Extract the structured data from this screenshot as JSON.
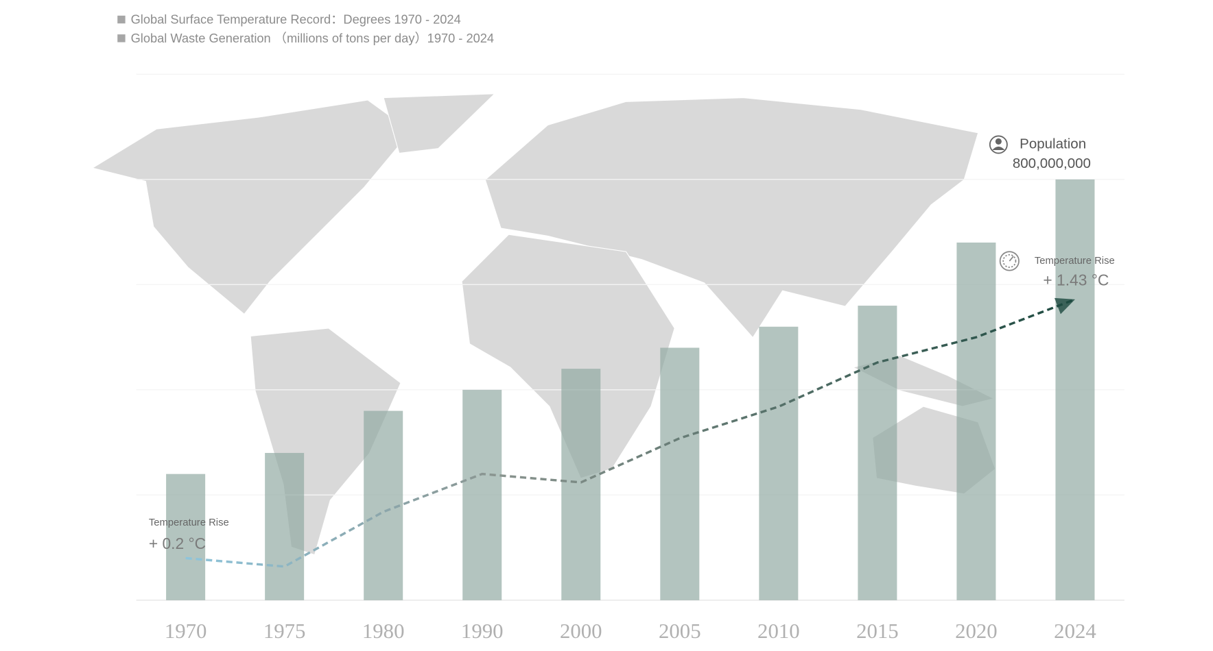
{
  "chart_data": {
    "type": "bar",
    "categories": [
      "1970",
      "1975",
      "1980",
      "1990",
      "2000",
      "2005",
      "2010",
      "2015",
      "2020",
      "2024"
    ],
    "ylim": [
      0,
      1000000000
    ],
    "yticks": [
      0,
      200000000,
      400000000,
      600000000,
      800000000,
      1000000000
    ],
    "y2lim": [
      0,
      2.5
    ],
    "grid": true,
    "series": [
      {
        "name": "Global Surface Temperature Record：Degrees  1970 - 2024",
        "type": "line",
        "axis": "y2",
        "color": "#1d4a40",
        "gradient": [
          "#8ec5dc",
          "#8a948f",
          "#1d4a40"
        ],
        "values": [
          0.2,
          0.16,
          0.42,
          0.6,
          0.56,
          0.77,
          0.92,
          1.13,
          1.25,
          1.43
        ],
        "value_labels": [
          "+ 0.2 °C",
          null,
          null,
          null,
          null,
          null,
          null,
          null,
          null,
          "+ 1.43 °C"
        ]
      },
      {
        "name": "Global Waste Generation （millions of tons per day）1970 - 2024",
        "type": "bar",
        "color": "#8fa8a0",
        "values": [
          240000000,
          280000000,
          360000000,
          400000000,
          440000000,
          480000000,
          520000000,
          560000000,
          680000000,
          800000000
        ],
        "value_labels": [
          null,
          null,
          null,
          null,
          null,
          null,
          null,
          null,
          null,
          "800,000,000"
        ]
      }
    ],
    "annotations": [
      "Temperature Rise",
      "Temperature Rise",
      "Population"
    ]
  }
}
